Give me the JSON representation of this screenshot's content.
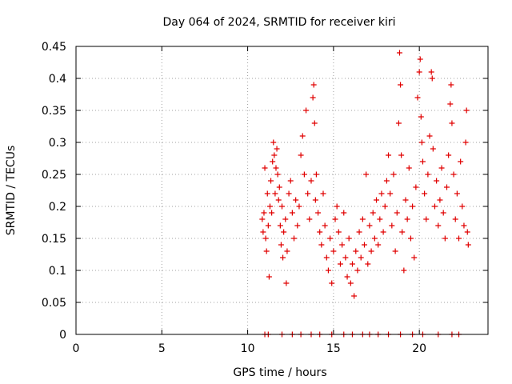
{
  "chart_data": {
    "type": "scatter",
    "title": "Day 064 of 2024, SRMTID for receiver kiri",
    "xlabel": "GPS time / hours",
    "ylabel": "SRMTID / TECUs",
    "xlim": [
      0,
      24
    ],
    "ylim": [
      0,
      0.45
    ],
    "xticks": [
      "0",
      "5",
      "10",
      "15",
      "20"
    ],
    "xtick_values": [
      0,
      5,
      10,
      15,
      20
    ],
    "yticks": [
      "0",
      "0.05",
      "0.1",
      "0.15",
      "0.2",
      "0.25",
      "0.3",
      "0.35",
      "0.4",
      "0.45"
    ],
    "ytick_values": [
      0,
      0.05,
      0.1,
      0.15,
      0.2,
      0.25,
      0.3,
      0.35,
      0.4,
      0.45
    ],
    "grid": true,
    "marker": "plus",
    "marker_color": "#e00000",
    "series": [
      {
        "points": [
          [
            10.85,
            0.18
          ],
          [
            10.9,
            0.16
          ],
          [
            10.95,
            0.19
          ],
          [
            11.0,
            0.26
          ],
          [
            11.05,
            0.15
          ],
          [
            11.1,
            0.13
          ],
          [
            11.15,
            0.22
          ],
          [
            11.2,
            0.17
          ],
          [
            11.25,
            0.09
          ],
          [
            11.3,
            0.2
          ],
          [
            11.35,
            0.24
          ],
          [
            11.4,
            0.19
          ],
          [
            11.45,
            0.27
          ],
          [
            11.5,
            0.3
          ],
          [
            11.55,
            0.28
          ],
          [
            11.6,
            0.22
          ],
          [
            11.65,
            0.26
          ],
          [
            11.7,
            0.29
          ],
          [
            11.75,
            0.25
          ],
          [
            11.8,
            0.21
          ],
          [
            11.85,
            0.23
          ],
          [
            11.9,
            0.17
          ],
          [
            11.95,
            0.14
          ],
          [
            12.0,
            0.2
          ],
          [
            12.05,
            0.12
          ],
          [
            12.1,
            0.16
          ],
          [
            12.2,
            0.18
          ],
          [
            12.25,
            0.08
          ],
          [
            12.3,
            0.13
          ],
          [
            12.4,
            0.22
          ],
          [
            12.5,
            0.24
          ],
          [
            12.6,
            0.19
          ],
          [
            12.7,
            0.15
          ],
          [
            12.8,
            0.21
          ],
          [
            12.9,
            0.17
          ],
          [
            13.0,
            0.2
          ],
          [
            13.1,
            0.28
          ],
          [
            13.2,
            0.31
          ],
          [
            13.3,
            0.25
          ],
          [
            13.4,
            0.35
          ],
          [
            13.5,
            0.22
          ],
          [
            13.6,
            0.18
          ],
          [
            13.7,
            0.24
          ],
          [
            13.8,
            0.37
          ],
          [
            13.85,
            0.39
          ],
          [
            13.9,
            0.33
          ],
          [
            13.95,
            0.21
          ],
          [
            14.0,
            0.25
          ],
          [
            14.1,
            0.19
          ],
          [
            14.2,
            0.16
          ],
          [
            14.3,
            0.14
          ],
          [
            14.4,
            0.22
          ],
          [
            14.5,
            0.17
          ],
          [
            14.6,
            0.12
          ],
          [
            14.7,
            0.1
          ],
          [
            14.8,
            0.15
          ],
          [
            14.9,
            0.08
          ],
          [
            15.0,
            0.13
          ],
          [
            15.1,
            0.18
          ],
          [
            15.2,
            0.2
          ],
          [
            15.3,
            0.16
          ],
          [
            15.4,
            0.11
          ],
          [
            15.5,
            0.14
          ],
          [
            15.6,
            0.19
          ],
          [
            15.7,
            0.12
          ],
          [
            15.8,
            0.09
          ],
          [
            15.9,
            0.15
          ],
          [
            16.0,
            0.08
          ],
          [
            16.1,
            0.11
          ],
          [
            16.2,
            0.06
          ],
          [
            16.3,
            0.13
          ],
          [
            16.4,
            0.1
          ],
          [
            16.5,
            0.16
          ],
          [
            16.6,
            0.12
          ],
          [
            16.7,
            0.18
          ],
          [
            16.8,
            0.14
          ],
          [
            16.9,
            0.25
          ],
          [
            17.0,
            0.11
          ],
          [
            17.1,
            0.17
          ],
          [
            17.2,
            0.13
          ],
          [
            17.3,
            0.19
          ],
          [
            17.4,
            0.15
          ],
          [
            17.5,
            0.21
          ],
          [
            17.6,
            0.14
          ],
          [
            17.7,
            0.18
          ],
          [
            17.8,
            0.22
          ],
          [
            17.9,
            0.16
          ],
          [
            18.0,
            0.2
          ],
          [
            18.1,
            0.24
          ],
          [
            18.2,
            0.28
          ],
          [
            18.3,
            0.22
          ],
          [
            18.4,
            0.17
          ],
          [
            18.5,
            0.25
          ],
          [
            18.6,
            0.13
          ],
          [
            18.7,
            0.19
          ],
          [
            18.8,
            0.33
          ],
          [
            18.85,
            0.44
          ],
          [
            18.9,
            0.39
          ],
          [
            18.95,
            0.28
          ],
          [
            19.0,
            0.16
          ],
          [
            19.1,
            0.1
          ],
          [
            19.2,
            0.21
          ],
          [
            19.3,
            0.18
          ],
          [
            19.4,
            0.26
          ],
          [
            19.5,
            0.15
          ],
          [
            19.6,
            0.2
          ],
          [
            19.7,
            0.12
          ],
          [
            19.8,
            0.23
          ],
          [
            19.9,
            0.37
          ],
          [
            20.0,
            0.41
          ],
          [
            20.05,
            0.43
          ],
          [
            20.1,
            0.34
          ],
          [
            20.15,
            0.3
          ],
          [
            20.2,
            0.27
          ],
          [
            20.3,
            0.22
          ],
          [
            20.4,
            0.18
          ],
          [
            20.5,
            0.25
          ],
          [
            20.6,
            0.31
          ],
          [
            20.7,
            0.41
          ],
          [
            20.75,
            0.4
          ],
          [
            20.8,
            0.29
          ],
          [
            20.9,
            0.2
          ],
          [
            21.0,
            0.24
          ],
          [
            21.1,
            0.17
          ],
          [
            21.2,
            0.21
          ],
          [
            21.3,
            0.26
          ],
          [
            21.4,
            0.19
          ],
          [
            21.5,
            0.15
          ],
          [
            21.6,
            0.23
          ],
          [
            21.7,
            0.28
          ],
          [
            21.8,
            0.36
          ],
          [
            21.85,
            0.39
          ],
          [
            21.9,
            0.33
          ],
          [
            22.0,
            0.25
          ],
          [
            22.1,
            0.18
          ],
          [
            22.2,
            0.22
          ],
          [
            22.3,
            0.15
          ],
          [
            22.4,
            0.27
          ],
          [
            22.5,
            0.2
          ],
          [
            22.6,
            0.17
          ],
          [
            22.7,
            0.3
          ],
          [
            22.75,
            0.35
          ],
          [
            22.8,
            0.16
          ],
          [
            22.85,
            0.14
          ],
          [
            11.0,
            0.0
          ],
          [
            11.2,
            0.0
          ],
          [
            12.0,
            0.0
          ],
          [
            12.6,
            0.0
          ],
          [
            13.1,
            0.0
          ],
          [
            13.7,
            0.0
          ],
          [
            14.2,
            0.0
          ],
          [
            14.9,
            0.0
          ],
          [
            15.6,
            0.0
          ],
          [
            16.1,
            0.0
          ],
          [
            16.7,
            0.0
          ],
          [
            17.1,
            0.0
          ],
          [
            17.6,
            0.0
          ],
          [
            18.2,
            0.0
          ],
          [
            18.9,
            0.0
          ],
          [
            19.6,
            0.0
          ],
          [
            20.2,
            0.0
          ],
          [
            21.1,
            0.0
          ],
          [
            21.9,
            0.0
          ],
          [
            22.3,
            0.0
          ]
        ]
      }
    ]
  }
}
